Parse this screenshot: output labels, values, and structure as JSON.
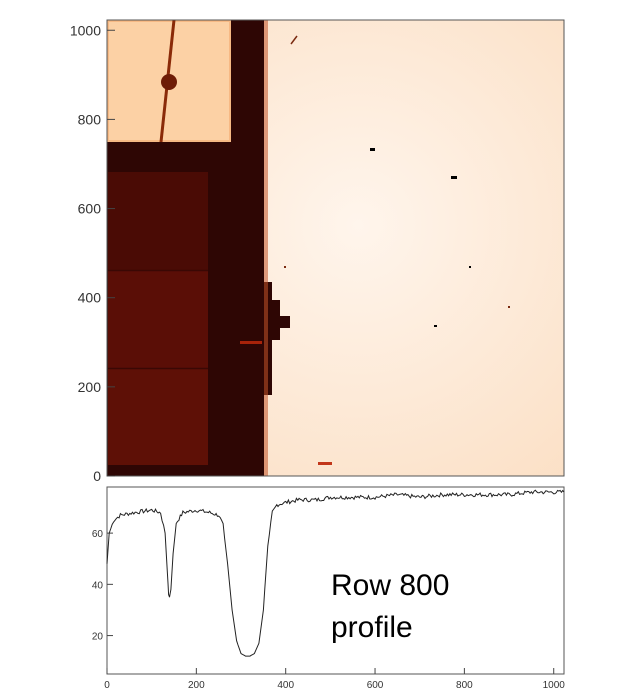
{
  "chart_data": [
    {
      "type": "heatmap",
      "title": "",
      "xlim": [
        0,
        1023
      ],
      "ylim": [
        0,
        1023
      ],
      "yticks": [
        0,
        200,
        400,
        600,
        800,
        1000
      ],
      "ytick_labels": [
        "0",
        "200",
        "400",
        "600",
        "800",
        "1000"
      ],
      "grid": false,
      "colors": {
        "bright": "#fde7d2",
        "bright_edge": "#fbe0c6",
        "upper_left_window": "#fcd1a5",
        "dark_band": "#2e0604",
        "dark_region": "#4a0b05",
        "dark_block": "#5a0e06",
        "mid_block": "#6a1407"
      }
    },
    {
      "type": "line",
      "xlim": [
        0,
        1023
      ],
      "ylim": [
        5,
        78
      ],
      "xticks": [
        0,
        200,
        400,
        600,
        800,
        1000
      ],
      "xtick_labels": [
        "0",
        "200",
        "400",
        "600",
        "800",
        "1000"
      ],
      "yticks": [
        20,
        40,
        60
      ],
      "ytick_labels": [
        "20",
        "40",
        "60"
      ],
      "grid": false,
      "series": [
        {
          "x": [
            0,
            5,
            15,
            30,
            60,
            100,
            120,
            130,
            135,
            138,
            140,
            143,
            148,
            155,
            170,
            200,
            230,
            250,
            260,
            270,
            280,
            290,
            300,
            310,
            320,
            330,
            340,
            350,
            360,
            370,
            380,
            400,
            430,
            470,
            500,
            550,
            600,
            650,
            700,
            750,
            800,
            850,
            900,
            950,
            1000,
            1023
          ],
          "y": [
            48,
            60,
            65,
            67,
            68,
            69,
            68,
            60,
            45,
            36,
            35,
            38,
            52,
            64,
            68,
            69,
            68,
            67,
            63,
            48,
            30,
            18,
            13,
            12,
            12,
            13,
            17,
            30,
            55,
            68,
            71,
            72,
            73,
            73,
            74,
            74,
            74,
            75,
            74,
            75,
            75,
            75,
            75,
            76,
            76,
            76
          ]
        }
      ]
    }
  ],
  "annotation": {
    "line1": "Row 800",
    "line2": "profile"
  }
}
